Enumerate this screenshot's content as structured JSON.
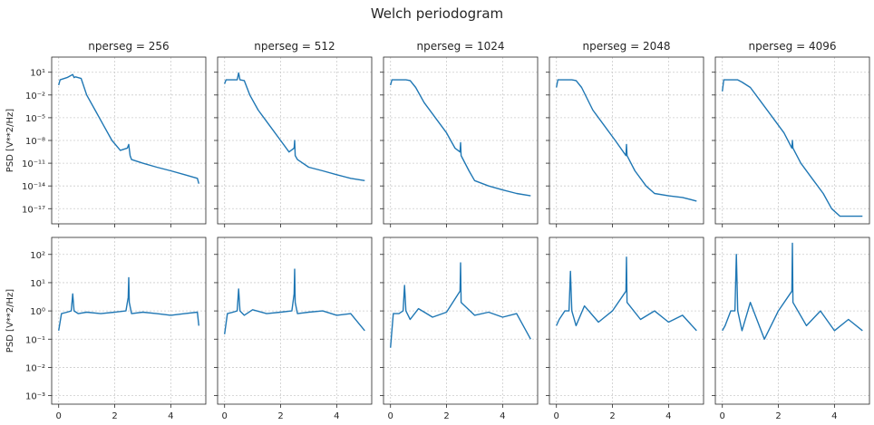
{
  "figure": {
    "title": "Welch periodogram"
  },
  "chart_data": [
    {
      "type": "line",
      "row": 0,
      "title": "nperseg = 256",
      "ylabel": "PSD [V**2/Hz]",
      "yscale": "log",
      "xlim": [
        -0.25,
        5.25
      ],
      "ylim": [
        1e-19,
        1000.0
      ],
      "x_ticks": [
        0,
        2,
        4
      ],
      "y_ticks": [
        1,
        -2,
        -5,
        -8,
        -11,
        -14,
        -17
      ],
      "grid": true,
      "color": "#1f77b4",
      "series": [
        {
          "x": [
            0,
            0.05,
            0.3,
            0.5,
            0.55,
            0.6,
            0.8,
            1.0,
            1.3,
            1.6,
            1.9,
            2.2,
            2.45,
            2.5,
            2.55,
            2.6,
            3.0,
            3.5,
            4.0,
            4.5,
            4.95,
            5.0
          ],
          "y": [
            0.2,
            1,
            2,
            5,
            2,
            2.5,
            1.5,
            0.01,
            0.0001,
            1e-06,
            1e-08,
            5e-10,
            1e-09,
            3e-09,
            1e-10,
            3e-11,
            1e-11,
            3e-12,
            1e-12,
            3e-13,
            1e-13,
            2e-14
          ]
        }
      ]
    },
    {
      "type": "line",
      "row": 0,
      "title": "nperseg = 512",
      "ylabel": "",
      "yscale": "log",
      "xlim": [
        -0.25,
        5.25
      ],
      "ylim": [
        1e-19,
        1000.0
      ],
      "x_ticks": [
        0,
        2,
        4
      ],
      "y_ticks": [],
      "grid": true,
      "color": "#1f77b4",
      "series": [
        {
          "x": [
            0,
            0.05,
            0.3,
            0.45,
            0.5,
            0.55,
            0.7,
            0.9,
            1.2,
            1.6,
            2.0,
            2.3,
            2.48,
            2.5,
            2.52,
            2.6,
            3.0,
            3.5,
            4.0,
            4.5,
            5.0
          ],
          "y": [
            0.3,
            1,
            1,
            1,
            8,
            1,
            0.8,
            0.01,
            0.0001,
            1e-06,
            1e-08,
            3e-10,
            1e-09,
            1e-08,
            1e-10,
            3e-11,
            3e-12,
            1e-12,
            3e-13,
            1e-13,
            5e-14
          ]
        }
      ]
    },
    {
      "type": "line",
      "row": 0,
      "title": "nperseg = 1024",
      "ylabel": "",
      "yscale": "log",
      "xlim": [
        -0.25,
        5.25
      ],
      "ylim": [
        1e-19,
        1000.0
      ],
      "x_ticks": [
        0,
        2,
        4
      ],
      "y_ticks": [],
      "grid": true,
      "color": "#1f77b4",
      "series": [
        {
          "x": [
            0,
            0.05,
            0.3,
            0.5,
            0.55,
            0.7,
            0.9,
            1.2,
            1.6,
            2.0,
            2.3,
            2.48,
            2.5,
            2.52,
            2.8,
            3.0,
            3.5,
            4.0,
            4.5,
            5.0
          ],
          "y": [
            0.2,
            1,
            1,
            1,
            1,
            0.8,
            0.1,
            0.001,
            1e-05,
            1e-07,
            1e-09,
            3e-10,
            5e-09,
            1e-10,
            1e-12,
            5e-14,
            1e-14,
            3e-15,
            1e-15,
            5e-16
          ]
        }
      ]
    },
    {
      "type": "line",
      "row": 0,
      "title": "nperseg = 2048",
      "ylabel": "",
      "yscale": "log",
      "xlim": [
        -0.25,
        5.25
      ],
      "ylim": [
        1e-19,
        1000.0
      ],
      "x_ticks": [
        0,
        2,
        4
      ],
      "y_ticks": [],
      "grid": true,
      "color": "#1f77b4",
      "series": [
        {
          "x": [
            0,
            0.05,
            0.3,
            0.5,
            0.55,
            0.7,
            0.9,
            1.3,
            1.7,
            2.1,
            2.48,
            2.5,
            2.52,
            2.8,
            3.2,
            3.5,
            4.0,
            4.5,
            5.0
          ],
          "y": [
            0.1,
            1,
            1,
            1,
            1,
            0.8,
            0.1,
            0.0001,
            1e-06,
            1e-08,
            1e-10,
            3e-09,
            1e-10,
            1e-12,
            1e-14,
            1e-15,
            5e-16,
            3e-16,
            1e-16
          ]
        }
      ]
    },
    {
      "type": "line",
      "row": 0,
      "title": "nperseg = 4096",
      "ylabel": "",
      "yscale": "log",
      "xlim": [
        -0.25,
        5.25
      ],
      "ylim": [
        1e-19,
        1000.0
      ],
      "x_ticks": [
        0,
        2,
        4
      ],
      "y_ticks": [],
      "grid": true,
      "color": "#1f77b4",
      "series": [
        {
          "x": [
            0,
            0.05,
            0.3,
            0.5,
            0.55,
            0.7,
            1.0,
            1.4,
            1.8,
            2.2,
            2.48,
            2.5,
            2.52,
            2.8,
            3.2,
            3.6,
            3.9,
            4.2,
            4.6,
            5.0
          ],
          "y": [
            0.03,
            1,
            1,
            1,
            1,
            0.5,
            0.1,
            0.001,
            1e-05,
            1e-07,
            1e-09,
            1e-08,
            1e-09,
            1e-11,
            1e-13,
            1e-15,
            1e-17,
            1e-18,
            1e-18,
            1e-18
          ]
        }
      ]
    },
    {
      "type": "line",
      "row": 1,
      "title": "",
      "ylabel": "PSD [V**2/Hz]",
      "yscale": "log",
      "xlim": [
        -0.25,
        5.25
      ],
      "ylim": [
        0.0005,
        400
      ],
      "x_ticks": [
        0,
        2,
        4
      ],
      "y_ticks": [
        2,
        1,
        0,
        -1,
        -2,
        -3
      ],
      "grid": true,
      "color": "#1f77b4",
      "series": [
        {
          "x": [
            0,
            0.1,
            0.3,
            0.45,
            0.5,
            0.55,
            0.7,
            1.0,
            1.5,
            2.0,
            2.4,
            2.48,
            2.5,
            2.52,
            2.6,
            3.0,
            3.5,
            4.0,
            4.5,
            4.95,
            5.0
          ],
          "y": [
            0.2,
            0.8,
            0.9,
            1,
            4,
            1,
            0.8,
            0.9,
            0.8,
            0.9,
            1,
            3,
            15,
            2,
            0.8,
            0.9,
            0.8,
            0.7,
            0.8,
            0.9,
            0.3
          ]
        }
      ]
    },
    {
      "type": "line",
      "row": 1,
      "title": "",
      "ylabel": "",
      "yscale": "log",
      "xlim": [
        -0.25,
        5.25
      ],
      "ylim": [
        0.0005,
        400
      ],
      "x_ticks": [
        0,
        2,
        4
      ],
      "y_ticks": [],
      "grid": true,
      "color": "#1f77b4",
      "series": [
        {
          "x": [
            0,
            0.1,
            0.3,
            0.45,
            0.5,
            0.55,
            0.7,
            1.0,
            1.5,
            2.0,
            2.4,
            2.48,
            2.5,
            2.52,
            2.6,
            3.0,
            3.5,
            4.0,
            4.5,
            5.0
          ],
          "y": [
            0.15,
            0.8,
            0.9,
            1,
            6,
            1,
            0.7,
            1.1,
            0.8,
            0.9,
            1,
            4,
            30,
            2,
            0.8,
            0.9,
            1,
            0.7,
            0.8,
            0.2
          ]
        }
      ]
    },
    {
      "type": "line",
      "row": 1,
      "title": "",
      "ylabel": "",
      "yscale": "log",
      "xlim": [
        -0.25,
        5.25
      ],
      "ylim": [
        0.0005,
        400
      ],
      "x_ticks": [
        0,
        2,
        4
      ],
      "y_ticks": [],
      "grid": true,
      "color": "#1f77b4",
      "series": [
        {
          "x": [
            0,
            0.1,
            0.3,
            0.45,
            0.5,
            0.55,
            0.7,
            1.0,
            1.5,
            2.0,
            2.48,
            2.5,
            2.52,
            3.0,
            3.5,
            4.0,
            4.5,
            5.0
          ],
          "y": [
            0.05,
            0.8,
            0.8,
            1,
            8,
            1,
            0.5,
            1.2,
            0.6,
            0.9,
            5,
            50,
            2,
            0.7,
            0.9,
            0.6,
            0.8,
            0.1
          ]
        }
      ]
    },
    {
      "type": "line",
      "row": 1,
      "title": "",
      "ylabel": "",
      "yscale": "log",
      "xlim": [
        -0.25,
        5.25
      ],
      "ylim": [
        0.0005,
        400
      ],
      "x_ticks": [
        0,
        2,
        4
      ],
      "y_ticks": [],
      "grid": true,
      "color": "#1f77b4",
      "series": [
        {
          "x": [
            0,
            0.1,
            0.3,
            0.45,
            0.5,
            0.55,
            0.7,
            1.0,
            1.5,
            2.0,
            2.48,
            2.5,
            2.52,
            3.0,
            3.5,
            4.0,
            4.5,
            5.0
          ],
          "y": [
            0.3,
            0.5,
            1,
            1,
            25,
            1,
            0.3,
            1.5,
            0.4,
            1,
            5,
            80,
            2,
            0.5,
            1,
            0.4,
            0.7,
            0.2
          ]
        }
      ]
    },
    {
      "type": "line",
      "row": 1,
      "title": "",
      "ylabel": "",
      "yscale": "log",
      "xlim": [
        -0.25,
        5.25
      ],
      "ylim": [
        0.0005,
        400
      ],
      "x_ticks": [
        0,
        2,
        4
      ],
      "y_ticks": [],
      "grid": true,
      "color": "#1f77b4",
      "series": [
        {
          "x": [
            0,
            0.1,
            0.3,
            0.45,
            0.5,
            0.55,
            0.7,
            1.0,
            1.5,
            2.0,
            2.48,
            2.5,
            2.52,
            3.0,
            3.5,
            4.0,
            4.5,
            5.0
          ],
          "y": [
            0.2,
            0.3,
            1,
            1,
            100,
            1,
            0.2,
            2,
            0.1,
            1,
            5,
            250,
            2,
            0.3,
            1,
            0.2,
            0.5,
            0.2
          ]
        }
      ]
    }
  ]
}
